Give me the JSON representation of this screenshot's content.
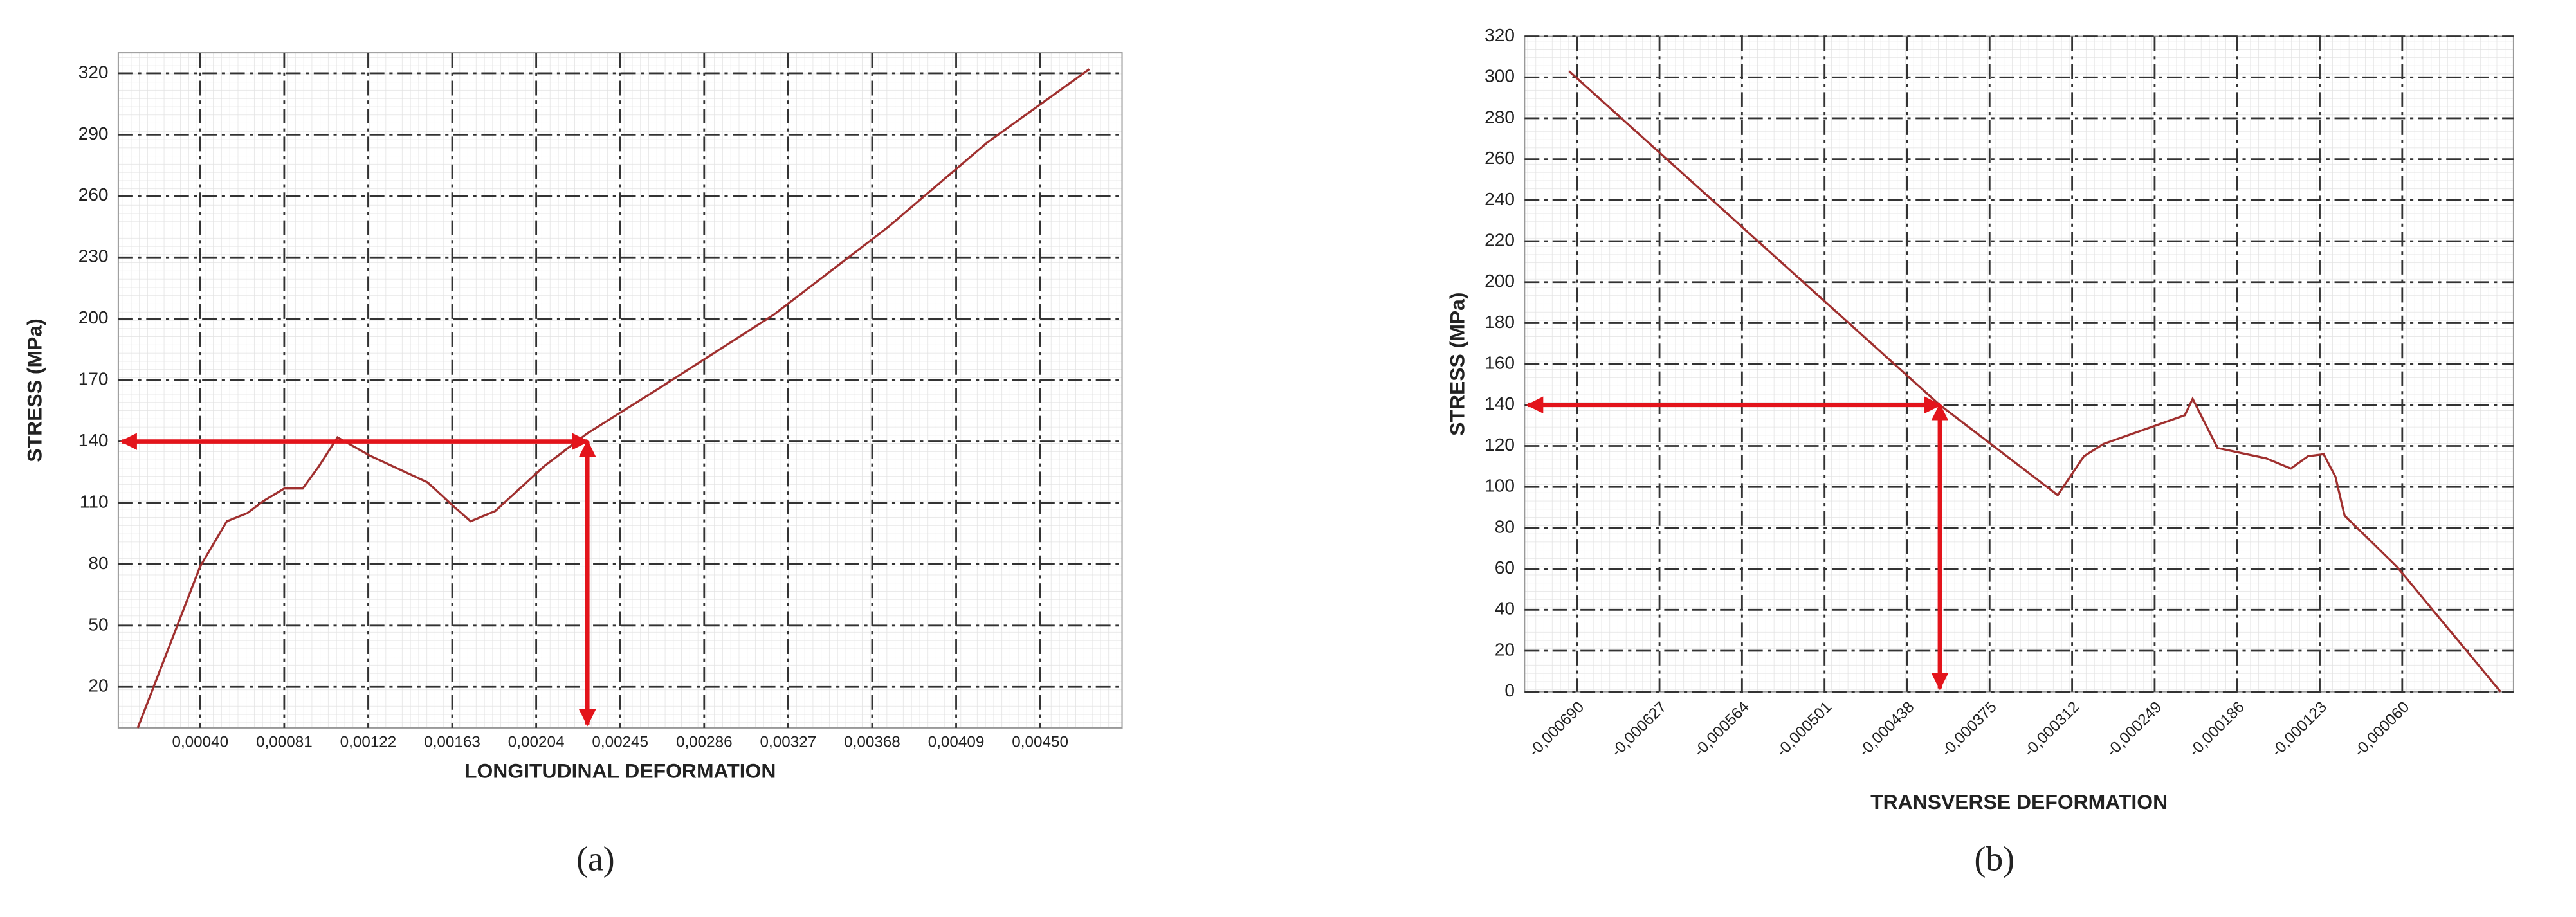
{
  "chart_data": [
    {
      "type": "line",
      "caption": "(a)",
      "y_label": "STRESS (MPa)",
      "x_label": "LONGITUDINAL DEFORMATION",
      "xlim": [
        0,
        0.0049
      ],
      "ylim": [
        0,
        330
      ],
      "xticks": [
        {
          "value": 0.0004,
          "label": "0,00040"
        },
        {
          "value": 0.00081,
          "label": "0,00081"
        },
        {
          "value": 0.00122,
          "label": "0,00122"
        },
        {
          "value": 0.00163,
          "label": "0,00163"
        },
        {
          "value": 0.00204,
          "label": "0,00204"
        },
        {
          "value": 0.00245,
          "label": "0,00245"
        },
        {
          "value": 0.00286,
          "label": "0,00286"
        },
        {
          "value": 0.00327,
          "label": "0,00327"
        },
        {
          "value": 0.00368,
          "label": "0,00368"
        },
        {
          "value": 0.00409,
          "label": "0,00409"
        },
        {
          "value": 0.0045,
          "label": "0,00450"
        }
      ],
      "yticks": [
        20,
        50,
        80,
        110,
        140,
        170,
        200,
        230,
        260,
        290,
        320
      ],
      "grid": true,
      "rotate_xticks": false,
      "x": [
        9.5e-05,
        0.0004,
        0.00053,
        0.00063,
        0.00071,
        0.00081,
        0.0009,
        0.00098,
        0.00107,
        0.00123,
        0.00151,
        0.00164,
        0.00172,
        0.00184,
        0.00208,
        0.00229,
        0.00264,
        0.0032,
        0.00376,
        0.00424,
        0.00474
      ],
      "series": [
        {
          "color": "#a0302f",
          "values": [
            0,
            79,
            101,
            105,
            111,
            117,
            117,
            128,
            142,
            133,
            120,
            108,
            101,
            106,
            128,
            144,
            166,
            202,
            245,
            286,
            322
          ]
        }
      ],
      "reference": {
        "x": 0.00229,
        "y": 140,
        "color": "#e3141b"
      }
    },
    {
      "type": "line",
      "caption": "(b)",
      "y_label": "STRESS (MPa)",
      "x_label": "TRANSVERSE DEFORMATION",
      "xlim": [
        -0.00073,
        2.5e-05
      ],
      "ylim": [
        0,
        320
      ],
      "xticks": [
        {
          "value": -0.00069,
          "label": "-0,000690"
        },
        {
          "value": -0.000627,
          "label": "-0,000627"
        },
        {
          "value": -0.000564,
          "label": "-0,000564"
        },
        {
          "value": -0.000501,
          "label": "-0,000501"
        },
        {
          "value": -0.000438,
          "label": "-0,000438"
        },
        {
          "value": -0.000375,
          "label": "-0,000375"
        },
        {
          "value": -0.000312,
          "label": "-0,000312"
        },
        {
          "value": -0.000249,
          "label": "-0,000249"
        },
        {
          "value": -0.000186,
          "label": "-0,000186"
        },
        {
          "value": -0.000123,
          "label": "-0,000123"
        },
        {
          "value": -6e-05,
          "label": "-0,000060"
        }
      ],
      "yticks": [
        0,
        20,
        40,
        60,
        80,
        100,
        120,
        140,
        160,
        180,
        200,
        220,
        240,
        260,
        280,
        300,
        320
      ],
      "grid": true,
      "rotate_xticks": true,
      "x": [
        -0.000696,
        -0.000413,
        -0.000323,
        -0.000303,
        -0.000288,
        -0.000226,
        -0.00022,
        -0.000201,
        -0.000164,
        -0.000145,
        -0.000132,
        -0.00012,
        -0.000111,
        -0.000104,
        -6.4e-05,
        1.5e-05
      ],
      "series": [
        {
          "color": "#a0302f",
          "values": [
            303,
            140,
            96,
            115,
            121,
            135,
            143,
            119,
            114,
            109,
            115,
            116,
            105,
            86,
            61,
            0
          ]
        }
      ],
      "reference": {
        "x": -0.000413,
        "y": 140,
        "color": "#e3141b"
      }
    }
  ]
}
